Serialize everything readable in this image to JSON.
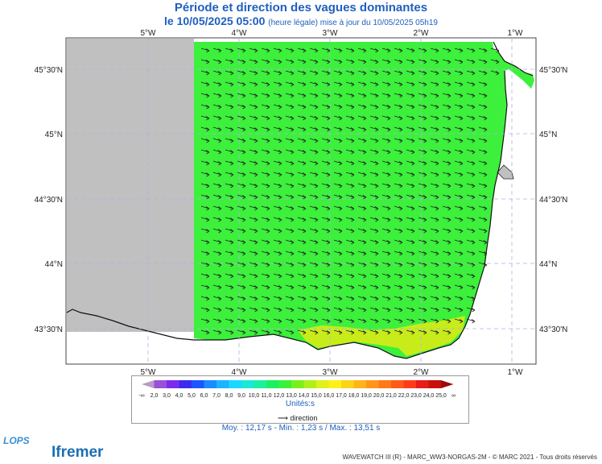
{
  "title": "Période et direction des vagues dominantes",
  "subtitle_date": "le 10/05/2025 05:00",
  "subtitle_note": "(heure légale) mise à jour du 10/05/2025 05h19",
  "lon_ticks": [
    "5°W",
    "4°W",
    "3°W",
    "2°W",
    "1°W"
  ],
  "lat_ticks": [
    "45°30'N",
    "45°N",
    "44°30'N",
    "44°N",
    "43°30'N"
  ],
  "legend": {
    "labels": [
      "-∞",
      "2,0",
      "3,0",
      "4,0",
      "5,0",
      "6,0",
      "7,0",
      "8,0",
      "9,0",
      "10,0",
      "11,0",
      "12,0",
      "13,0",
      "14,0",
      "15,0",
      "16,0",
      "17,0",
      "18,0",
      "19,0",
      "20,0",
      "21,0",
      "22,0",
      "23,0",
      "24,0",
      "25,0",
      "∞"
    ],
    "colors": [
      "#b89cc8",
      "#9a50d8",
      "#7a2bef",
      "#3b2bef",
      "#1a55ff",
      "#1a8cff",
      "#1ab4ff",
      "#1ad8ff",
      "#1ae8d8",
      "#1af0a0",
      "#1af060",
      "#3cf03c",
      "#7af01a",
      "#b0f01a",
      "#e0f01a",
      "#fff01a",
      "#ffd21a",
      "#ffb41a",
      "#ff961a",
      "#ff781a",
      "#ff5a1a",
      "#ff3c1a",
      "#e81a1a",
      "#c81010",
      "#a00808"
    ],
    "unit": "Unités",
    "direction_label": "direction"
  },
  "stats": "Moy. : 12,17 s   -   Min. : 1,23 s / Max. : 13,51 s",
  "credit": "WAVEWATCH III (R) - MARC_WW3-NORGAS-2M - © MARC 2021 - Tous droits réservés",
  "logos": {
    "lops": "LOPS",
    "ifremer": "ifremer"
  },
  "map_colors": {
    "sea": "#3cf03c",
    "land": "#ffffff",
    "nodata": "#c0c0c0",
    "grid": "#aab4e0"
  }
}
